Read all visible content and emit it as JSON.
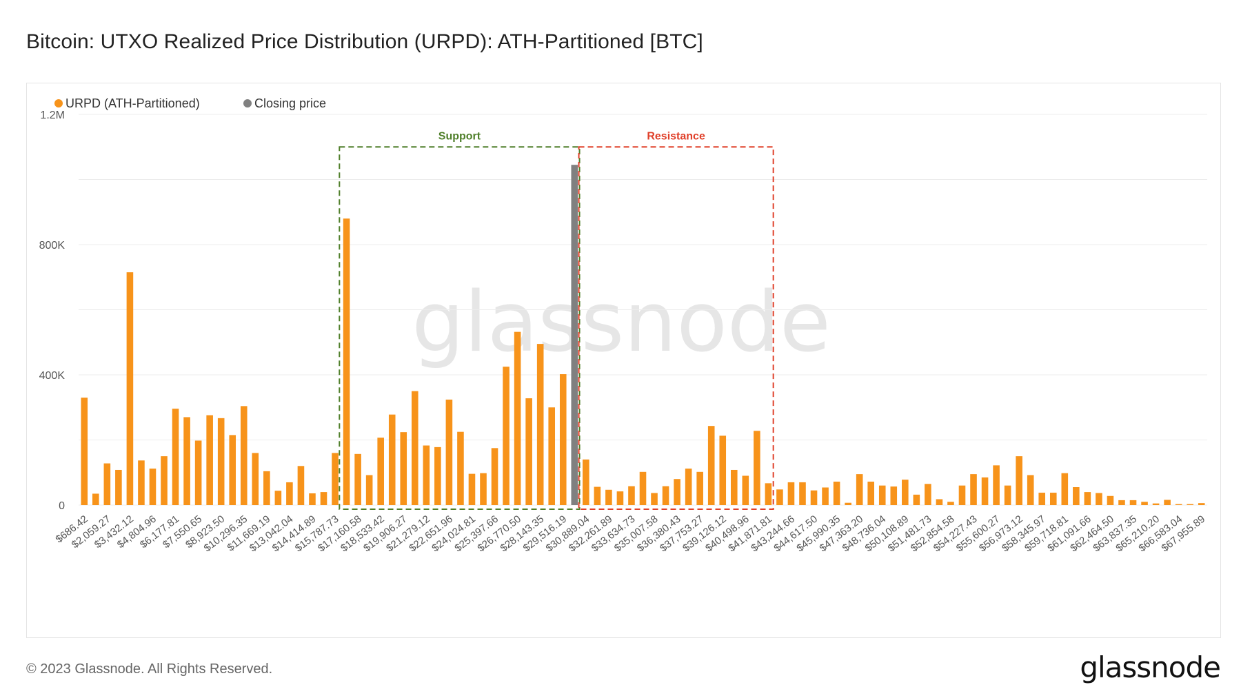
{
  "page": {
    "title": "Bitcoin: UTXO Realized Price Distribution (URPD): ATH-Partitioned [BTC]",
    "footer": "© 2023 Glassnode. All Rights Reserved.",
    "logo": "glassnode",
    "watermark": "glassnode"
  },
  "colors": {
    "bar": "#f7931a",
    "closing": "#808080",
    "support": "#4f7f2a",
    "resistance": "#e0402a",
    "grid": "#ececec",
    "axis_text": "#555555",
    "watermark": "#e6e6e6"
  },
  "chart_data": {
    "type": "bar",
    "title": "Bitcoin: UTXO Realized Price Distribution (URPD): ATH-Partitioned [BTC]",
    "xlabel": "",
    "ylabel": "",
    "ylim": [
      0,
      1200000
    ],
    "yticks": [
      {
        "value": 0,
        "label": "0"
      },
      {
        "value": 400000,
        "label": "400K"
      },
      {
        "value": 800000,
        "label": "800K"
      },
      {
        "value": 1200000,
        "label": "1.2M"
      }
    ],
    "grid": true,
    "legend": {
      "placement": "top-left",
      "entries": [
        {
          "label": "URPD (ATH-Partitioned)",
          "color": "#f7931a"
        },
        {
          "label": "Closing price",
          "color": "#808080"
        }
      ]
    },
    "tick_labels": [
      "$686.42",
      "$2,059.27",
      "$3,432.12",
      "$4,804.96",
      "$6,177.81",
      "$7,550.65",
      "$8,923.50",
      "$10,296.35",
      "$11,669.19",
      "$13,042.04",
      "$14,414.89",
      "$15,787.73",
      "$17,160.58",
      "$18,533.42",
      "$19,906.27",
      "$21,279.12",
      "$22,651.96",
      "$24,024.81",
      "$25,397.66",
      "$26,770.50",
      "$28,143.35",
      "$29,516.19",
      "$30,889.04",
      "$32,261.89",
      "$33,634.73",
      "$35,007.58",
      "$36,380.43",
      "$37,753.27",
      "$39,126.12",
      "$40,498.96",
      "$41,871.81",
      "$43,244.66",
      "$44,617.50",
      "$45,990.35",
      "$47,363.20",
      "$48,736.04",
      "$50,108.89",
      "$51,481.73",
      "$52,854.58",
      "$54,227.43",
      "$55,600.27",
      "$56,973.12",
      "$58,345.97",
      "$59,718.81",
      "$61,091.66",
      "$62,464.50",
      "$63,837.35",
      "$65,210.20",
      "$66,583.04",
      "$67,955.89"
    ],
    "series": [
      {
        "name": "URPD (ATH-Partitioned)",
        "values": [
          330000,
          35000,
          128000,
          108000,
          715000,
          137000,
          112000,
          150000,
          296000,
          270000,
          198000,
          276000,
          267000,
          215000,
          304000,
          160000,
          104000,
          44000,
          70000,
          120000,
          36000,
          40000,
          160000,
          880000,
          157000,
          92000,
          207000,
          278000,
          224000,
          350000,
          183000,
          178000,
          324000,
          225000,
          96000,
          98000,
          175000,
          425000,
          532000,
          328000,
          495000,
          300000,
          402000,
          0,
          140000,
          56000,
          47000,
          42000,
          58000,
          102000,
          37000,
          58000,
          80000,
          112000,
          102000,
          243000,
          213000,
          108000,
          90000,
          228000,
          67000,
          48000,
          70000,
          70000,
          45000,
          54000,
          72000,
          7000,
          95000,
          72000,
          60000,
          57000,
          78000,
          32000,
          65000,
          18000,
          10000,
          60000,
          95000,
          85000,
          122000,
          60000,
          150000,
          92000,
          38000,
          38000,
          98000,
          55000,
          40000,
          37000,
          28000,
          15000,
          15000,
          10000,
          5000,
          16000,
          3000,
          3000,
          6000
        ]
      },
      {
        "name": "Closing price",
        "bin_index": 43,
        "value": 1045000
      }
    ],
    "annotations": [
      {
        "label": "Support",
        "from_bin": 23,
        "to_bin": 43,
        "top_value": 1100000
      },
      {
        "label": "Resistance",
        "from_bin": 44,
        "to_bin": 60,
        "top_value": 1100000
      }
    ]
  }
}
